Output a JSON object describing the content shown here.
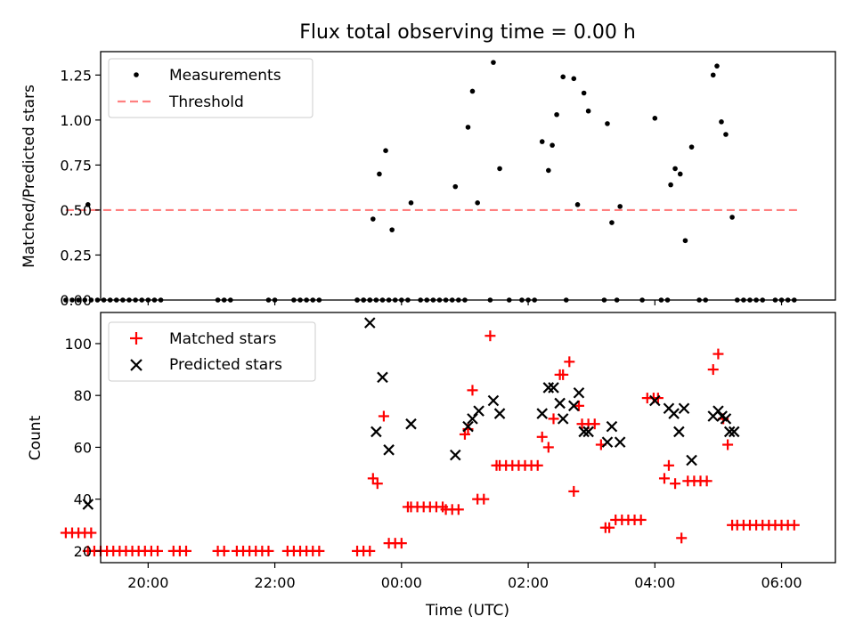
{
  "colors": {
    "measurement": "#000000",
    "threshold": "#ff8080",
    "matched": "#ff0000",
    "predicted": "#000000"
  },
  "chart_data": [
    {
      "type": "scatter",
      "title": "Flux total observing time = 0.00 h",
      "xlabel": "",
      "ylabel": "Matched/Predicted stars",
      "xlim": [
        -4.75,
        6.85
      ],
      "ylim": [
        0,
        1.38
      ],
      "yticks": [
        "0.00",
        "0.25",
        "0.50",
        "0.75",
        "1.00",
        "1.25"
      ],
      "xticks": [
        -4,
        -2,
        0,
        2,
        4,
        6
      ],
      "legend": [
        "Measurements",
        "Threshold"
      ],
      "legend_position": "upper-left",
      "threshold": {
        "value": 0.5,
        "x_range": [
          -5.3,
          6.25
        ]
      },
      "series": [
        {
          "name": "Measurements",
          "x": [
            -5.3,
            -5.2,
            -5.1,
            -5.0,
            -4.9,
            -4.8,
            -4.7,
            -4.6,
            -4.5,
            -4.4,
            -4.3,
            -4.2,
            -4.1,
            -4.0,
            -3.9,
            -3.8,
            -2.9,
            -2.8,
            -2.7,
            -2.1,
            -2.0,
            -1.7,
            -1.6,
            -1.5,
            -1.4,
            -1.3,
            -0.7,
            -0.6,
            -0.5,
            -0.4,
            -0.3,
            -0.2,
            -0.1,
            -0.7,
            -0.6,
            -0.5,
            0.0,
            0.1,
            0.3,
            0.4,
            0.5,
            0.6,
            0.7,
            0.8,
            0.9,
            1.0,
            1.4,
            1.7,
            1.9,
            2.0,
            2.1,
            2.6,
            3.2,
            3.4,
            3.8,
            4.1,
            4.2,
            4.7,
            4.8,
            5.3,
            5.4,
            5.5,
            5.6,
            5.7,
            5.9,
            6.0,
            6.1,
            6.2,
            -4.95,
            -0.45,
            -0.35,
            -0.25,
            -0.15,
            0.15,
            0.85,
            1.05,
            1.12,
            1.2,
            1.45,
            1.55,
            2.22,
            2.32,
            2.38,
            2.45,
            2.55,
            2.72,
            2.78,
            2.88,
            2.95,
            3.25,
            3.32,
            3.45,
            4.0,
            4.25,
            4.32,
            4.4,
            4.48,
            4.58,
            4.92,
            4.98,
            5.05,
            5.12,
            5.22
          ],
          "y": [
            0,
            0,
            0,
            0,
            0,
            0,
            0,
            0,
            0,
            0,
            0,
            0,
            0,
            0,
            0,
            0,
            0,
            0,
            0,
            0,
            0,
            0,
            0,
            0,
            0,
            0,
            0,
            0,
            0,
            0,
            0,
            0,
            0,
            0,
            0,
            0,
            0,
            0,
            0,
            0,
            0,
            0,
            0,
            0,
            0,
            0,
            0,
            0,
            0,
            0,
            0,
            0,
            0,
            0,
            0,
            0,
            0,
            0,
            0,
            0,
            0,
            0,
            0,
            0,
            0,
            0,
            0,
            0,
            0.53,
            0.45,
            0.7,
            0.83,
            0.39,
            0.54,
            0.63,
            0.96,
            1.16,
            0.54,
            1.32,
            0.73,
            0.88,
            0.72,
            0.86,
            1.03,
            1.24,
            1.23,
            0.53,
            1.15,
            1.05,
            0.98,
            0.43,
            0.52,
            1.01,
            0.64,
            0.73,
            0.7,
            0.33,
            0.85,
            1.25,
            1.3,
            0.99,
            0.92,
            0.46
          ]
        }
      ]
    },
    {
      "type": "scatter",
      "title": "",
      "xlabel": "Time (UTC)",
      "ylabel": "Count",
      "xlim": [
        -4.75,
        6.85
      ],
      "ylim": [
        15.5,
        112
      ],
      "yticks": [
        20,
        40,
        60,
        80,
        100
      ],
      "xticks": [
        -4,
        -2,
        0,
        2,
        4,
        6
      ],
      "xtick_labels": [
        "20:00",
        "22:00",
        "00:00",
        "02:00",
        "04:00",
        "06:00"
      ],
      "legend": [
        "Matched stars",
        "Predicted stars"
      ],
      "legend_position": "upper-left",
      "series": [
        {
          "name": "Matched stars",
          "x": [
            -5.3,
            -5.2,
            -5.1,
            -5.0,
            -4.9,
            -4.95,
            -4.85,
            -4.75,
            -4.65,
            -4.55,
            -4.45,
            -4.35,
            -4.25,
            -4.15,
            -4.05,
            -3.95,
            -3.85,
            -3.6,
            -3.5,
            -3.4,
            -2.9,
            -2.8,
            -2.6,
            -2.5,
            -2.4,
            -2.3,
            -2.2,
            -2.1,
            -1.8,
            -1.7,
            -1.6,
            -1.5,
            -1.4,
            -1.3,
            -0.7,
            -0.6,
            -0.5,
            -0.45,
            -0.38,
            -0.28,
            -0.2,
            -0.1,
            0.0,
            0.1,
            0.15,
            0.25,
            0.35,
            0.45,
            0.55,
            0.65,
            0.7,
            0.8,
            0.9,
            1.0,
            1.05,
            1.12,
            1.2,
            1.3,
            1.4,
            1.5,
            1.55,
            1.65,
            1.75,
            1.85,
            1.95,
            2.05,
            2.15,
            2.22,
            2.32,
            2.4,
            2.5,
            2.55,
            2.65,
            2.72,
            2.8,
            2.85,
            2.95,
            3.05,
            3.15,
            3.22,
            3.28,
            3.38,
            3.48,
            3.58,
            3.68,
            3.78,
            3.88,
            3.98,
            4.05,
            4.15,
            4.22,
            4.32,
            4.42,
            4.52,
            4.62,
            4.72,
            4.82,
            4.92,
            5.0,
            5.08,
            5.15,
            5.22,
            5.3,
            5.4,
            5.5,
            5.6,
            5.7,
            5.8,
            5.9,
            6.0,
            6.1,
            6.2
          ],
          "y": [
            27,
            27,
            27,
            27,
            27,
            20,
            20,
            20,
            20,
            20,
            20,
            20,
            20,
            20,
            20,
            20,
            20,
            20,
            20,
            20,
            20,
            20,
            20,
            20,
            20,
            20,
            20,
            20,
            20,
            20,
            20,
            20,
            20,
            20,
            20,
            20,
            20,
            48,
            46,
            72,
            23,
            23,
            23,
            37,
            37,
            37,
            37,
            37,
            37,
            37,
            36,
            36,
            36,
            65,
            67,
            82,
            40,
            40,
            103,
            53,
            53,
            53,
            53,
            53,
            53,
            53,
            53,
            64,
            60,
            71,
            88,
            88,
            93,
            43,
            76,
            69,
            69,
            69,
            61,
            29,
            29,
            32,
            32,
            32,
            32,
            32,
            79,
            79,
            79,
            48,
            53,
            46,
            25,
            47,
            47,
            47,
            47,
            90,
            96,
            71,
            61,
            30,
            30,
            30,
            30,
            30,
            30,
            30,
            30,
            30,
            30,
            30
          ]
        },
        {
          "name": "Predicted stars",
          "x": [
            -4.95,
            -0.5,
            -0.4,
            -0.3,
            -0.2,
            0.15,
            0.85,
            1.05,
            1.12,
            1.22,
            1.45,
            1.55,
            2.22,
            2.32,
            2.4,
            2.5,
            2.55,
            2.72,
            2.8,
            2.88,
            2.95,
            3.25,
            3.32,
            3.45,
            4.0,
            4.22,
            4.3,
            4.38,
            4.46,
            4.58,
            4.92,
            5.0,
            5.06,
            5.12,
            5.18,
            5.25
          ],
          "y": [
            38,
            108,
            66,
            87,
            59,
            69,
            57,
            68,
            71,
            74,
            78,
            73,
            73,
            83,
            83,
            77,
            71,
            76,
            81,
            66,
            66,
            62,
            68,
            62,
            78,
            75,
            73,
            66,
            75,
            55,
            72,
            74,
            72,
            71,
            66,
            66
          ]
        }
      ]
    }
  ]
}
